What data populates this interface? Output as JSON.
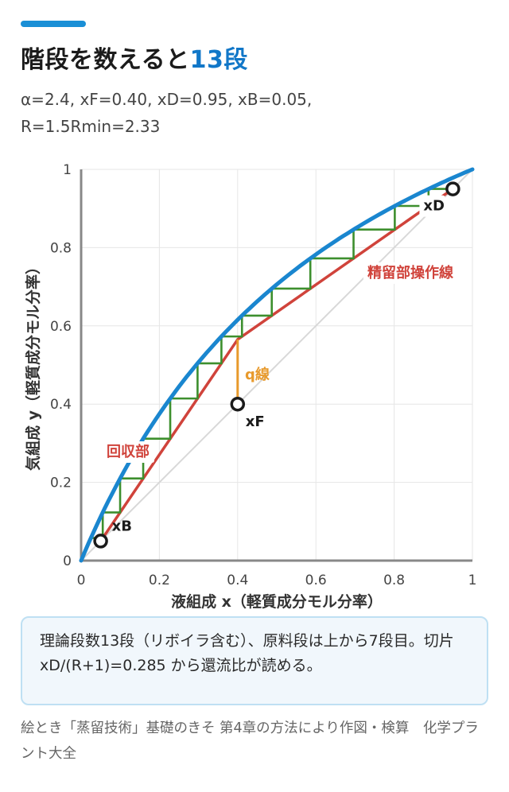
{
  "header": {
    "title_main": "階段を数えると",
    "title_highlight": "13段",
    "params_line1": "α=2.4, xF=0.40, xD=0.95, xB=0.05,",
    "params_line2": "R=1.5Rmin=2.33"
  },
  "chart_data": {
    "type": "line",
    "xlabel": "液組成 x（軽質成分モル分率）",
    "ylabel": "気組成 y（軽質成分モル分率）",
    "xlim": [
      0,
      1
    ],
    "ylim": [
      0,
      1
    ],
    "x_ticks": [
      "0",
      "0.2",
      "0.4",
      "0.6",
      "0.8",
      "1"
    ],
    "y_ticks": [
      "0",
      "0.2",
      "0.4",
      "0.6",
      "0.8",
      "1"
    ],
    "grid": true,
    "alpha": 2.4,
    "xF": 0.4,
    "xD": 0.95,
    "xB": 0.05,
    "R": 2.33,
    "stages": 13,
    "labels": {
      "rectifying": "精留部操作線",
      "stripping": "回収部",
      "q_line": "q線",
      "xD": "xD",
      "xF": "xF",
      "xB": "xB"
    },
    "colors": {
      "equilibrium": "#1a86cf",
      "operating": "#d0433b",
      "steps": "#3d8f2e",
      "q_line": "#e89a2c",
      "diagonal": "#d8d8d8"
    }
  },
  "note": {
    "text": "理論段数13段（リボイラ含む）、原料段は上から7段目。切片 xD/(R+1)=0.285 から還流比が読める。"
  },
  "footer": {
    "source": "絵とき「蒸留技術」基礎のきそ 第4章の方法により作図・検算　化学プラント大全"
  }
}
